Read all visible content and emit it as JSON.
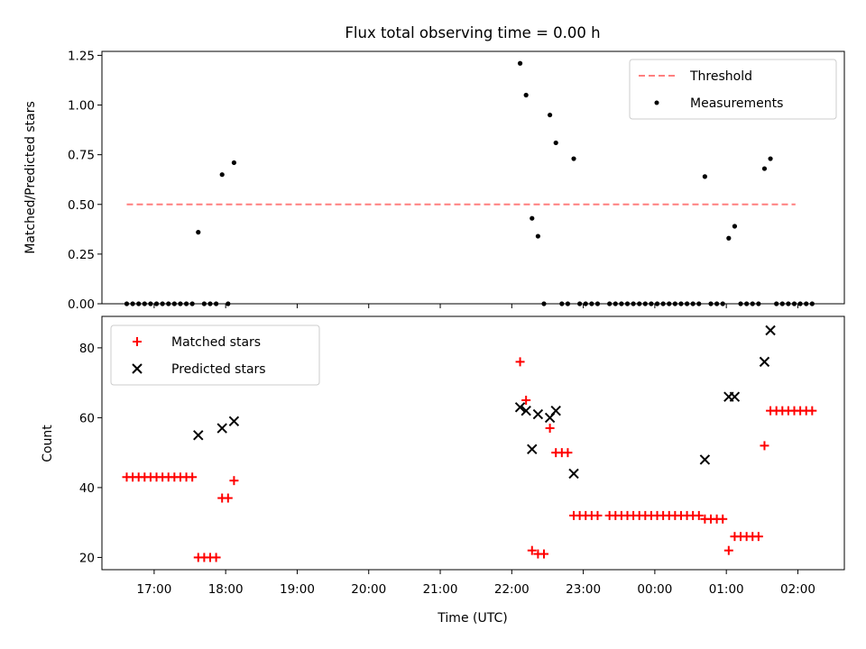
{
  "chart_data": [
    {
      "type": "scatter",
      "title": "Flux total observing time = 0.00 h",
      "ylabel": "Matched/Predicted stars",
      "xlabel": "",
      "ylim": [
        0,
        1.27
      ],
      "yticks": [
        "0.00",
        "0.25",
        "0.50",
        "0.75",
        "1.00",
        "1.25"
      ],
      "grid": false,
      "legend_position": "top-right",
      "threshold": {
        "name": "Threshold",
        "value": 0.5,
        "x_start": "16:37",
        "x_end": "01:58",
        "color": "#ff7f7f",
        "style": "dashed"
      },
      "series": [
        {
          "name": "Measurements",
          "marker": "dot",
          "color": "#000000",
          "points": [
            {
              "x": "16:37",
              "y": 0
            },
            {
              "x": "16:42",
              "y": 0
            },
            {
              "x": "16:47",
              "y": 0
            },
            {
              "x": "16:52",
              "y": 0
            },
            {
              "x": "16:57",
              "y": 0
            },
            {
              "x": "17:02",
              "y": 0
            },
            {
              "x": "17:07",
              "y": 0
            },
            {
              "x": "17:12",
              "y": 0
            },
            {
              "x": "17:17",
              "y": 0
            },
            {
              "x": "17:22",
              "y": 0
            },
            {
              "x": "17:27",
              "y": 0
            },
            {
              "x": "17:32",
              "y": 0
            },
            {
              "x": "17:37",
              "y": 0.36
            },
            {
              "x": "17:42",
              "y": 0
            },
            {
              "x": "17:47",
              "y": 0
            },
            {
              "x": "17:52",
              "y": 0
            },
            {
              "x": "17:57",
              "y": 0.65
            },
            {
              "x": "18:02",
              "y": 0
            },
            {
              "x": "18:07",
              "y": 0.71
            },
            {
              "x": "22:07",
              "y": 1.21
            },
            {
              "x": "22:12",
              "y": 1.05
            },
            {
              "x": "22:17",
              "y": 0.43
            },
            {
              "x": "22:22",
              "y": 0.34
            },
            {
              "x": "22:27",
              "y": 0
            },
            {
              "x": "22:32",
              "y": 0.95
            },
            {
              "x": "22:37",
              "y": 0.81
            },
            {
              "x": "22:42",
              "y": 0
            },
            {
              "x": "22:47",
              "y": 0
            },
            {
              "x": "22:52",
              "y": 0.73
            },
            {
              "x": "22:57",
              "y": 0
            },
            {
              "x": "23:02",
              "y": 0
            },
            {
              "x": "23:07",
              "y": 0
            },
            {
              "x": "23:12",
              "y": 0
            },
            {
              "x": "23:22",
              "y": 0
            },
            {
              "x": "23:27",
              "y": 0
            },
            {
              "x": "23:32",
              "y": 0
            },
            {
              "x": "23:37",
              "y": 0
            },
            {
              "x": "23:42",
              "y": 0
            },
            {
              "x": "23:47",
              "y": 0
            },
            {
              "x": "23:52",
              "y": 0
            },
            {
              "x": "23:57",
              "y": 0
            },
            {
              "x": "00:02",
              "y": 0
            },
            {
              "x": "00:07",
              "y": 0
            },
            {
              "x": "00:12",
              "y": 0
            },
            {
              "x": "00:17",
              "y": 0
            },
            {
              "x": "00:22",
              "y": 0
            },
            {
              "x": "00:27",
              "y": 0
            },
            {
              "x": "00:32",
              "y": 0
            },
            {
              "x": "00:37",
              "y": 0
            },
            {
              "x": "00:42",
              "y": 0.64
            },
            {
              "x": "00:47",
              "y": 0
            },
            {
              "x": "00:52",
              "y": 0
            },
            {
              "x": "00:57",
              "y": 0
            },
            {
              "x": "01:02",
              "y": 0.33
            },
            {
              "x": "01:07",
              "y": 0.39
            },
            {
              "x": "01:12",
              "y": 0
            },
            {
              "x": "01:17",
              "y": 0
            },
            {
              "x": "01:22",
              "y": 0
            },
            {
              "x": "01:27",
              "y": 0
            },
            {
              "x": "01:32",
              "y": 0.68
            },
            {
              "x": "01:37",
              "y": 0.73
            },
            {
              "x": "01:42",
              "y": 0
            },
            {
              "x": "01:47",
              "y": 0
            },
            {
              "x": "01:52",
              "y": 0
            },
            {
              "x": "01:57",
              "y": 0
            },
            {
              "x": "02:02",
              "y": 0
            },
            {
              "x": "02:07",
              "y": 0
            },
            {
              "x": "02:12",
              "y": 0
            }
          ]
        }
      ]
    },
    {
      "type": "scatter",
      "title": "",
      "ylabel": "Count",
      "xlabel": "Time (UTC)",
      "ylim": [
        16.5,
        89
      ],
      "yticks": [
        "20",
        "40",
        "60",
        "80"
      ],
      "xticks": [
        "17:00",
        "18:00",
        "19:00",
        "20:00",
        "21:00",
        "22:00",
        "23:00",
        "00:00",
        "01:00",
        "02:00"
      ],
      "grid": false,
      "legend_position": "top-left",
      "series": [
        {
          "name": "Matched stars",
          "marker": "plus",
          "color": "#ff0000",
          "points": [
            {
              "x": "16:37",
              "y": 43
            },
            {
              "x": "16:42",
              "y": 43
            },
            {
              "x": "16:47",
              "y": 43
            },
            {
              "x": "16:52",
              "y": 43
            },
            {
              "x": "16:57",
              "y": 43
            },
            {
              "x": "17:02",
              "y": 43
            },
            {
              "x": "17:07",
              "y": 43
            },
            {
              "x": "17:12",
              "y": 43
            },
            {
              "x": "17:17",
              "y": 43
            },
            {
              "x": "17:22",
              "y": 43
            },
            {
              "x": "17:27",
              "y": 43
            },
            {
              "x": "17:32",
              "y": 43
            },
            {
              "x": "17:37",
              "y": 20
            },
            {
              "x": "17:42",
              "y": 20
            },
            {
              "x": "17:47",
              "y": 20
            },
            {
              "x": "17:52",
              "y": 20
            },
            {
              "x": "17:57",
              "y": 37
            },
            {
              "x": "18:02",
              "y": 37
            },
            {
              "x": "18:07",
              "y": 42
            },
            {
              "x": "22:07",
              "y": 76
            },
            {
              "x": "22:12",
              "y": 65
            },
            {
              "x": "22:17",
              "y": 22
            },
            {
              "x": "22:22",
              "y": 21
            },
            {
              "x": "22:27",
              "y": 21
            },
            {
              "x": "22:32",
              "y": 57
            },
            {
              "x": "22:37",
              "y": 50
            },
            {
              "x": "22:42",
              "y": 50
            },
            {
              "x": "22:47",
              "y": 50
            },
            {
              "x": "22:52",
              "y": 32
            },
            {
              "x": "22:57",
              "y": 32
            },
            {
              "x": "23:02",
              "y": 32
            },
            {
              "x": "23:07",
              "y": 32
            },
            {
              "x": "23:12",
              "y": 32
            },
            {
              "x": "23:22",
              "y": 32
            },
            {
              "x": "23:27",
              "y": 32
            },
            {
              "x": "23:32",
              "y": 32
            },
            {
              "x": "23:37",
              "y": 32
            },
            {
              "x": "23:42",
              "y": 32
            },
            {
              "x": "23:47",
              "y": 32
            },
            {
              "x": "23:52",
              "y": 32
            },
            {
              "x": "23:57",
              "y": 32
            },
            {
              "x": "00:02",
              "y": 32
            },
            {
              "x": "00:07",
              "y": 32
            },
            {
              "x": "00:12",
              "y": 32
            },
            {
              "x": "00:17",
              "y": 32
            },
            {
              "x": "00:22",
              "y": 32
            },
            {
              "x": "00:27",
              "y": 32
            },
            {
              "x": "00:32",
              "y": 32
            },
            {
              "x": "00:37",
              "y": 32
            },
            {
              "x": "00:42",
              "y": 31
            },
            {
              "x": "00:47",
              "y": 31
            },
            {
              "x": "00:52",
              "y": 31
            },
            {
              "x": "00:57",
              "y": 31
            },
            {
              "x": "01:02",
              "y": 22
            },
            {
              "x": "01:07",
              "y": 26
            },
            {
              "x": "01:12",
              "y": 26
            },
            {
              "x": "01:17",
              "y": 26
            },
            {
              "x": "01:22",
              "y": 26
            },
            {
              "x": "01:27",
              "y": 26
            },
            {
              "x": "01:32",
              "y": 52
            },
            {
              "x": "01:37",
              "y": 62
            },
            {
              "x": "01:42",
              "y": 62
            },
            {
              "x": "01:47",
              "y": 62
            },
            {
              "x": "01:52",
              "y": 62
            },
            {
              "x": "01:57",
              "y": 62
            },
            {
              "x": "02:02",
              "y": 62
            },
            {
              "x": "02:07",
              "y": 62
            },
            {
              "x": "02:12",
              "y": 62
            }
          ]
        },
        {
          "name": "Predicted stars",
          "marker": "x",
          "color": "#000000",
          "points": [
            {
              "x": "17:37",
              "y": 55
            },
            {
              "x": "17:57",
              "y": 57
            },
            {
              "x": "18:07",
              "y": 59
            },
            {
              "x": "22:07",
              "y": 63
            },
            {
              "x": "22:12",
              "y": 62
            },
            {
              "x": "22:17",
              "y": 51
            },
            {
              "x": "22:22",
              "y": 61
            },
            {
              "x": "22:32",
              "y": 60
            },
            {
              "x": "22:37",
              "y": 62
            },
            {
              "x": "22:52",
              "y": 44
            },
            {
              "x": "00:42",
              "y": 48
            },
            {
              "x": "01:02",
              "y": 66
            },
            {
              "x": "01:07",
              "y": 66
            },
            {
              "x": "01:32",
              "y": 76
            },
            {
              "x": "01:37",
              "y": 85
            }
          ]
        }
      ]
    }
  ]
}
